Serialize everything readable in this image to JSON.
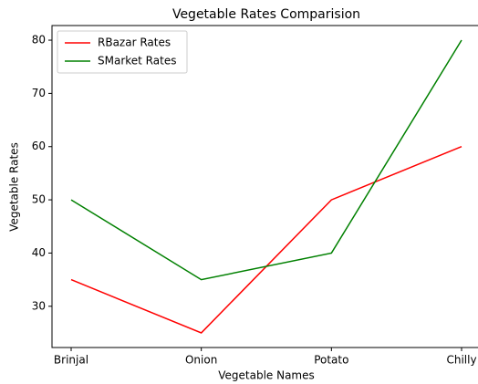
{
  "chart_data": {
    "type": "line",
    "title": "Vegetable Rates Comparision",
    "x_label": "Vegetable Names",
    "y_label": "Vegetable Rates",
    "categories": [
      "Brinjal",
      "Onion",
      "Potato",
      "Chilly"
    ],
    "series": [
      {
        "name": "RBazar Rates",
        "color": "#ff0000",
        "values": [
          35,
          25,
          50,
          60
        ]
      },
      {
        "name": "SMarket Rates",
        "color": "#008000",
        "values": [
          50,
          35,
          40,
          80
        ]
      }
    ],
    "ylim": [
      22.25,
      82.75
    ],
    "yticks": [
      30,
      40,
      50,
      60,
      70,
      80
    ],
    "legend": "upper left",
    "grid": false
  }
}
